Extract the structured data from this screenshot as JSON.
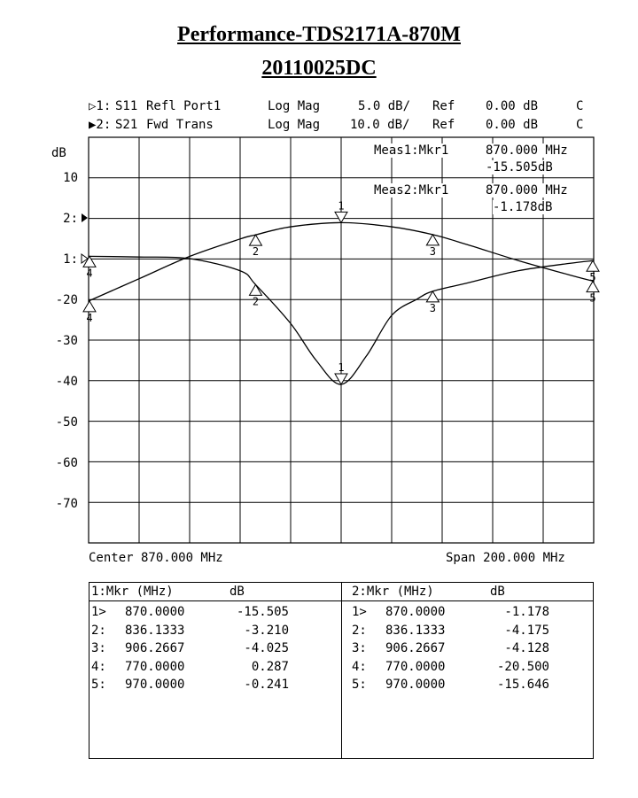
{
  "header": {
    "title": "Performance-TDS2171A-870M",
    "subtitle": "20110025DC"
  },
  "traces": [
    {
      "prefix": "▷1:",
      "param": "S11",
      "desc": "Refl Port1",
      "format": "Log Mag",
      "scale": "5.0 dB/",
      "ref_label": "Ref",
      "ref": "0.00 dB",
      "flag": "C"
    },
    {
      "prefix": "▶2:",
      "param": "S21",
      "desc": "Fwd Trans",
      "format": "Log Mag",
      "scale": "10.0 dB/",
      "ref_label": "Ref",
      "ref": "0.00 dB",
      "flag": "C"
    }
  ],
  "meas": {
    "m1_label": "Meas1:Mkr1",
    "m1_freq": "870.000 MHz",
    "m1_val": "-15.505dB",
    "m2_label": "Meas2:Mkr1",
    "m2_freq": "870.000 MHz",
    "m2_val": "-1.178dB"
  },
  "axis": {
    "unit": "dB",
    "y_labels": [
      "10",
      "2:",
      "1:",
      "-20",
      "-30",
      "-40",
      "-50",
      "-60",
      "-70"
    ],
    "center": "Center 870.000 MHz",
    "span": "Span 200.000 MHz"
  },
  "chart_data": {
    "type": "line",
    "xlim": [
      770,
      970
    ],
    "x_unit": "MHz",
    "series": [
      {
        "name": "1:S11 Refl Port1",
        "scale_db_per_div": 5,
        "x": [
          770,
          790,
          810,
          830,
          836.1333,
          850,
          860,
          870,
          880,
          890,
          900,
          906.2667,
          920,
          940,
          960,
          970
        ],
        "values": [
          0.287,
          0.2,
          0.0,
          -1.5,
          -3.21,
          -8.0,
          -12.5,
          -15.505,
          -12.0,
          -7.0,
          -5.0,
          -4.025,
          -3.0,
          -1.5,
          -0.6,
          -0.241
        ]
      },
      {
        "name": "2:S21 Fwd Trans",
        "scale_db_per_div": 10,
        "x": [
          770,
          790,
          810,
          830,
          836.1333,
          850,
          870,
          890,
          906.2667,
          920,
          940,
          960,
          970
        ],
        "values": [
          -20.5,
          -15.0,
          -9.5,
          -5.2,
          -4.175,
          -2.2,
          -1.178,
          -2.2,
          -4.128,
          -6.6,
          -10.5,
          -14.0,
          -15.646
        ]
      }
    ]
  },
  "markers": {
    "s11": [
      {
        "label": "1",
        "x": 870.0
      },
      {
        "label": "2",
        "x": 836.1333
      },
      {
        "label": "3",
        "x": 906.2667
      },
      {
        "label": "4",
        "x": 770.0
      },
      {
        "label": "5",
        "x": 970.0
      }
    ],
    "s21": [
      {
        "label": "1",
        "x": 870.0
      },
      {
        "label": "2",
        "x": 836.1333
      },
      {
        "label": "3",
        "x": 906.2667
      },
      {
        "label": "4",
        "x": 770.0
      },
      {
        "label": "5",
        "x": 970.0
      }
    ]
  },
  "table": {
    "left_header": "1:Mkr (MHz)",
    "left_unit": "dB",
    "right_header": "2:Mkr (MHz)",
    "right_unit": "dB",
    "left_rows": [
      {
        "idx": "1>",
        "freq": "870.0000",
        "val": "-15.505"
      },
      {
        "idx": "2:",
        "freq": "836.1333",
        "val": "-3.210"
      },
      {
        "idx": "3:",
        "freq": "906.2667",
        "val": "-4.025"
      },
      {
        "idx": "4:",
        "freq": "770.0000",
        "val": "0.287"
      },
      {
        "idx": "5:",
        "freq": "970.0000",
        "val": "-0.241"
      }
    ],
    "right_rows": [
      {
        "idx": "1>",
        "freq": "870.0000",
        "val": "-1.178"
      },
      {
        "idx": "2:",
        "freq": "836.1333",
        "val": "-4.175"
      },
      {
        "idx": "3:",
        "freq": "906.2667",
        "val": "-4.128"
      },
      {
        "idx": "4:",
        "freq": "770.0000",
        "val": "-20.500"
      },
      {
        "idx": "5:",
        "freq": "970.0000",
        "val": "-15.646"
      }
    ]
  }
}
